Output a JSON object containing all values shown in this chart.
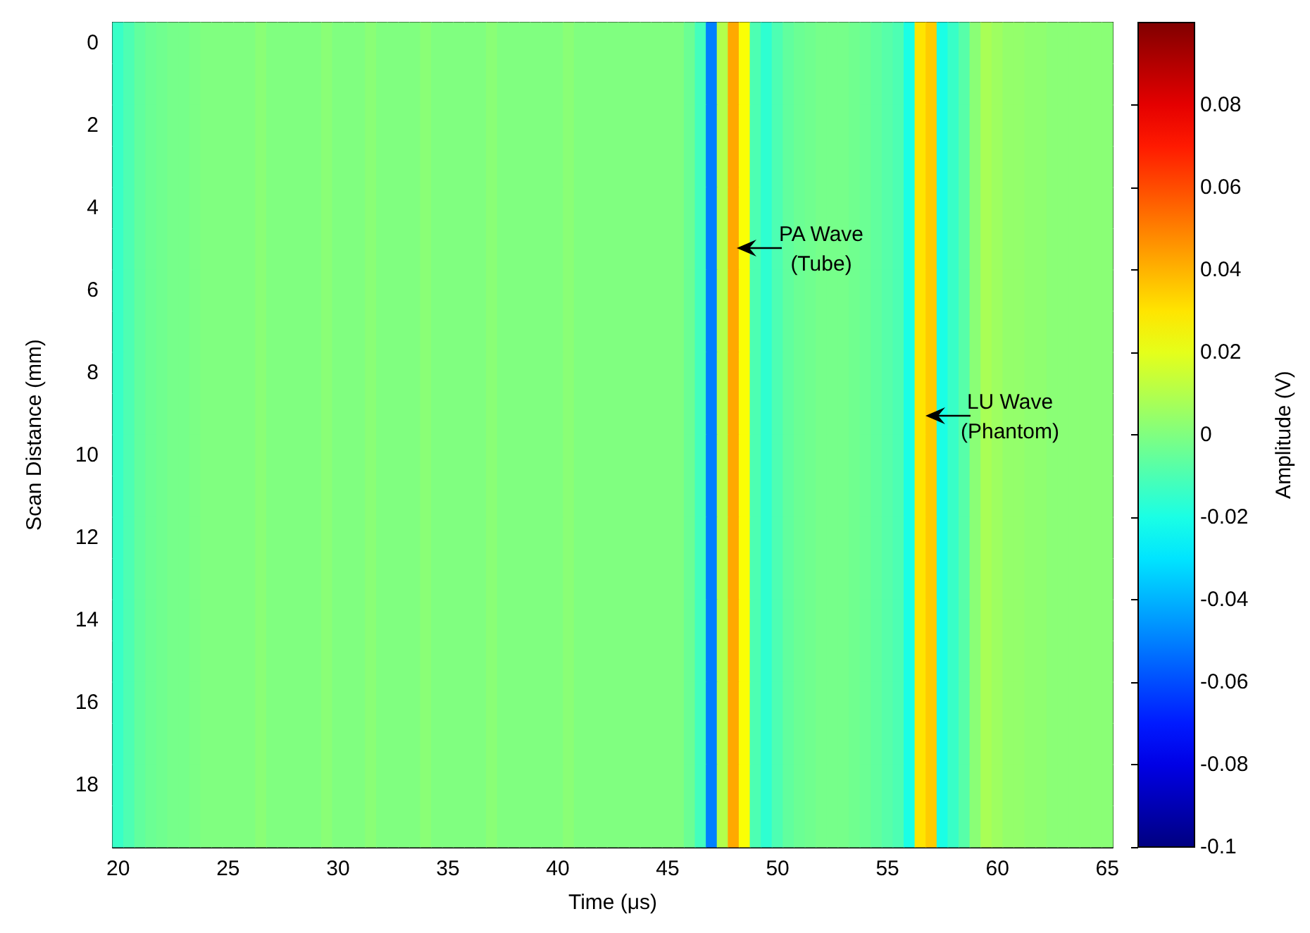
{
  "chart_data": {
    "type": "heatmap",
    "xlabel": "Time (μs)",
    "ylabel": "Scan Distance (mm)",
    "clabel": "Amplitude (V)",
    "categories": [
      "20",
      null,
      null,
      null,
      null,
      null,
      null,
      null,
      null,
      null,
      "25",
      null,
      null,
      null,
      null,
      null,
      null,
      null,
      null,
      null,
      "30",
      null,
      null,
      null,
      null,
      null,
      null,
      null,
      null,
      null,
      "35",
      null,
      null,
      null,
      null,
      null,
      null,
      null,
      null,
      null,
      "40",
      null,
      null,
      null,
      null,
      null,
      null,
      null,
      null,
      null,
      "45",
      null,
      null,
      null,
      null,
      null,
      null,
      null,
      null,
      null,
      "50",
      null,
      null,
      null,
      null,
      null,
      null,
      null,
      null,
      null,
      "55",
      null,
      null,
      null,
      null,
      null,
      null,
      null,
      null,
      null,
      "60",
      null,
      null,
      null,
      null,
      null,
      null,
      null,
      null,
      null,
      "65"
    ],
    "y_categories": [
      "0",
      null,
      "2",
      null,
      "4",
      null,
      "6",
      null,
      "8",
      null,
      "10",
      null,
      "12",
      null,
      "14",
      null,
      "16",
      null,
      "18",
      null
    ],
    "cells": [
      [
        -0.014,
        -0.01,
        -0.006,
        -0.004,
        -0.003,
        -0.002,
        -0.002,
        -0.001,
        0,
        0,
        0,
        0,
        0,
        0.002,
        0,
        0,
        0,
        0,
        0,
        0.002,
        0,
        0,
        0,
        0.002,
        0,
        0,
        0,
        0,
        0.002,
        0,
        0,
        0,
        0,
        0,
        0.002,
        0,
        0,
        0,
        0,
        0,
        0,
        0.002,
        0,
        0,
        0,
        0,
        0,
        0,
        0,
        0,
        0,
        0,
        -0.004,
        -0.012,
        -0.05,
        0.01,
        0.042,
        0.024,
        -0.01,
        -0.016,
        -0.01,
        -0.006,
        -0.004,
        -0.003,
        -0.002,
        -0.002,
        -0.002,
        -0.003,
        -0.004,
        -0.006,
        -0.008,
        -0.01,
        -0.02,
        0.03,
        0.035,
        -0.02,
        -0.014,
        -0.008,
        0.002,
        0.008,
        0.006,
        0.004,
        0.004,
        0.003,
        0.003,
        0.002,
        0.002,
        0.002,
        0.002,
        0.002,
        0.002
      ],
      [
        -0.014,
        -0.01,
        -0.006,
        -0.004,
        -0.003,
        -0.002,
        -0.002,
        -0.001,
        0,
        0,
        0,
        0,
        0,
        0.002,
        0,
        0,
        0,
        0,
        0,
        0.002,
        0,
        0,
        0,
        0.002,
        0,
        0,
        0,
        0,
        0.002,
        0,
        0,
        0,
        0,
        0,
        0.002,
        0,
        0,
        0,
        0,
        0,
        0,
        0.002,
        0,
        0,
        0,
        0,
        0,
        0,
        0,
        0,
        0,
        0,
        -0.004,
        -0.012,
        -0.05,
        0.01,
        0.042,
        0.024,
        -0.01,
        -0.016,
        -0.01,
        -0.006,
        -0.004,
        -0.003,
        -0.002,
        -0.002,
        -0.002,
        -0.003,
        -0.004,
        -0.006,
        -0.008,
        -0.01,
        -0.02,
        0.03,
        0.035,
        -0.02,
        -0.014,
        -0.008,
        0.002,
        0.008,
        0.006,
        0.004,
        0.004,
        0.003,
        0.003,
        0.002,
        0.002,
        0.002,
        0.002,
        0.002,
        0.002
      ],
      [
        -0.014,
        -0.01,
        -0.006,
        -0.004,
        -0.003,
        -0.002,
        -0.002,
        -0.001,
        0,
        0,
        0,
        0,
        0,
        0.002,
        0,
        0,
        0,
        0,
        0,
        0.002,
        0,
        0,
        0,
        0.002,
        0,
        0,
        0,
        0,
        0.002,
        0,
        0,
        0,
        0,
        0,
        0.002,
        0,
        0,
        0,
        0,
        0,
        0,
        0.002,
        0,
        0,
        0,
        0,
        0,
        0,
        0,
        0,
        0,
        0,
        -0.004,
        -0.012,
        -0.05,
        0.01,
        0.042,
        0.024,
        -0.01,
        -0.016,
        -0.01,
        -0.006,
        -0.004,
        -0.003,
        -0.002,
        -0.002,
        -0.002,
        -0.003,
        -0.004,
        -0.006,
        -0.008,
        -0.01,
        -0.02,
        0.03,
        0.035,
        -0.02,
        -0.014,
        -0.008,
        0.002,
        0.008,
        0.006,
        0.004,
        0.004,
        0.003,
        0.003,
        0.002,
        0.002,
        0.002,
        0.002,
        0.002,
        0.002
      ],
      [
        -0.014,
        -0.01,
        -0.006,
        -0.004,
        -0.003,
        -0.002,
        -0.002,
        -0.001,
        0,
        0,
        0,
        0,
        0,
        0.002,
        0,
        0,
        0,
        0,
        0,
        0.002,
        0,
        0,
        0,
        0.002,
        0,
        0,
        0,
        0,
        0.002,
        0,
        0,
        0,
        0,
        0,
        0.002,
        0,
        0,
        0,
        0,
        0,
        0,
        0.002,
        0,
        0,
        0,
        0,
        0,
        0,
        0,
        0,
        0,
        0,
        -0.004,
        -0.012,
        -0.05,
        0.01,
        0.042,
        0.024,
        -0.01,
        -0.016,
        -0.01,
        -0.006,
        -0.004,
        -0.003,
        -0.002,
        -0.002,
        -0.002,
        -0.003,
        -0.004,
        -0.006,
        -0.008,
        -0.01,
        -0.02,
        0.03,
        0.035,
        -0.02,
        -0.014,
        -0.008,
        0.002,
        0.008,
        0.006,
        0.004,
        0.004,
        0.003,
        0.003,
        0.002,
        0.002,
        0.002,
        0.002,
        0.002,
        0.002
      ],
      [
        -0.014,
        -0.01,
        -0.006,
        -0.004,
        -0.003,
        -0.002,
        -0.002,
        -0.001,
        0,
        0,
        0,
        0,
        0,
        0.002,
        0,
        0,
        0,
        0,
        0,
        0.002,
        0,
        0,
        0,
        0.002,
        0,
        0,
        0,
        0,
        0.002,
        0,
        0,
        0,
        0,
        0,
        0.002,
        0,
        0,
        0,
        0,
        0,
        0,
        0.002,
        0,
        0,
        0,
        0,
        0,
        0,
        0,
        0,
        0,
        0,
        -0.004,
        -0.012,
        -0.05,
        0.01,
        0.042,
        0.024,
        -0.01,
        -0.016,
        -0.01,
        -0.006,
        -0.004,
        -0.003,
        -0.002,
        -0.002,
        -0.002,
        -0.003,
        -0.004,
        -0.006,
        -0.008,
        -0.01,
        -0.02,
        0.03,
        0.035,
        -0.02,
        -0.014,
        -0.008,
        0.002,
        0.008,
        0.006,
        0.004,
        0.004,
        0.003,
        0.003,
        0.002,
        0.002,
        0.002,
        0.002,
        0.002,
        0.002
      ],
      [
        -0.014,
        -0.01,
        -0.006,
        -0.004,
        -0.003,
        -0.002,
        -0.002,
        -0.001,
        0,
        0,
        0,
        0,
        0,
        0.002,
        0,
        0,
        0,
        0,
        0,
        0.002,
        0,
        0,
        0,
        0.002,
        0,
        0,
        0,
        0,
        0.002,
        0,
        0,
        0,
        0,
        0,
        0.002,
        0,
        0,
        0,
        0,
        0,
        0,
        0.002,
        0,
        0,
        0,
        0,
        0,
        0,
        0,
        0,
        0,
        0,
        -0.004,
        -0.012,
        -0.05,
        0.01,
        0.042,
        0.024,
        -0.01,
        -0.016,
        -0.01,
        -0.006,
        -0.004,
        -0.003,
        -0.002,
        -0.002,
        -0.002,
        -0.003,
        -0.004,
        -0.006,
        -0.008,
        -0.01,
        -0.02,
        0.03,
        0.035,
        -0.02,
        -0.014,
        -0.008,
        0.002,
        0.008,
        0.006,
        0.004,
        0.004,
        0.003,
        0.003,
        0.002,
        0.002,
        0.002,
        0.002,
        0.002,
        0.002
      ],
      [
        -0.014,
        -0.01,
        -0.006,
        -0.004,
        -0.003,
        -0.002,
        -0.002,
        -0.001,
        0,
        0,
        0,
        0,
        0,
        0.002,
        0,
        0,
        0,
        0,
        0,
        0.002,
        0,
        0,
        0,
        0.002,
        0,
        0,
        0,
        0,
        0.002,
        0,
        0,
        0,
        0,
        0,
        0.002,
        0,
        0,
        0,
        0,
        0,
        0,
        0.002,
        0,
        0,
        0,
        0,
        0,
        0,
        0,
        0,
        0,
        0,
        -0.004,
        -0.012,
        -0.05,
        0.01,
        0.042,
        0.024,
        -0.01,
        -0.016,
        -0.01,
        -0.006,
        -0.004,
        -0.003,
        -0.002,
        -0.002,
        -0.002,
        -0.003,
        -0.004,
        -0.006,
        -0.008,
        -0.01,
        -0.02,
        0.03,
        0.035,
        -0.02,
        -0.014,
        -0.008,
        0.002,
        0.008,
        0.006,
        0.004,
        0.004,
        0.003,
        0.003,
        0.002,
        0.002,
        0.002,
        0.002,
        0.002,
        0.002
      ],
      [
        -0.014,
        -0.01,
        -0.006,
        -0.004,
        -0.003,
        -0.002,
        -0.002,
        -0.001,
        0,
        0,
        0,
        0,
        0,
        0.002,
        0,
        0,
        0,
        0,
        0,
        0.002,
        0,
        0,
        0,
        0.002,
        0,
        0,
        0,
        0,
        0.002,
        0,
        0,
        0,
        0,
        0,
        0.002,
        0,
        0,
        0,
        0,
        0,
        0,
        0.002,
        0,
        0,
        0,
        0,
        0,
        0,
        0,
        0,
        0,
        0,
        -0.004,
        -0.012,
        -0.05,
        0.01,
        0.042,
        0.024,
        -0.01,
        -0.016,
        -0.01,
        -0.006,
        -0.004,
        -0.003,
        -0.002,
        -0.002,
        -0.002,
        -0.003,
        -0.004,
        -0.006,
        -0.008,
        -0.01,
        -0.02,
        0.03,
        0.035,
        -0.02,
        -0.014,
        -0.008,
        0.002,
        0.008,
        0.006,
        0.004,
        0.004,
        0.003,
        0.003,
        0.002,
        0.002,
        0.002,
        0.002,
        0.002,
        0.002
      ],
      [
        -0.014,
        -0.01,
        -0.006,
        -0.004,
        -0.003,
        -0.002,
        -0.002,
        -0.001,
        0,
        0,
        0,
        0,
        0,
        0.002,
        0,
        0,
        0,
        0,
        0,
        0.002,
        0,
        0,
        0,
        0.002,
        0,
        0,
        0,
        0,
        0.002,
        0,
        0,
        0,
        0,
        0,
        0.002,
        0,
        0,
        0,
        0,
        0,
        0,
        0.002,
        0,
        0,
        0,
        0,
        0,
        0,
        0,
        0,
        0,
        0,
        -0.004,
        -0.012,
        -0.05,
        0.01,
        0.042,
        0.024,
        -0.01,
        -0.016,
        -0.01,
        -0.006,
        -0.004,
        -0.003,
        -0.002,
        -0.002,
        -0.002,
        -0.003,
        -0.004,
        -0.006,
        -0.008,
        -0.01,
        -0.02,
        0.03,
        0.035,
        -0.02,
        -0.014,
        -0.008,
        0.002,
        0.008,
        0.006,
        0.004,
        0.004,
        0.003,
        0.003,
        0.002,
        0.002,
        0.002,
        0.002,
        0.002,
        0.002
      ],
      [
        -0.014,
        -0.01,
        -0.006,
        -0.004,
        -0.003,
        -0.002,
        -0.002,
        -0.001,
        0,
        0,
        0,
        0,
        0,
        0.002,
        0,
        0,
        0,
        0,
        0,
        0.002,
        0,
        0,
        0,
        0.002,
        0,
        0,
        0,
        0,
        0.002,
        0,
        0,
        0,
        0,
        0,
        0.002,
        0,
        0,
        0,
        0,
        0,
        0,
        0.002,
        0,
        0,
        0,
        0,
        0,
        0,
        0,
        0,
        0,
        0,
        -0.004,
        -0.012,
        -0.05,
        0.01,
        0.042,
        0.024,
        -0.01,
        -0.016,
        -0.01,
        -0.006,
        -0.004,
        -0.003,
        -0.002,
        -0.002,
        -0.002,
        -0.003,
        -0.004,
        -0.006,
        -0.008,
        -0.01,
        -0.02,
        0.03,
        0.035,
        -0.02,
        -0.014,
        -0.008,
        0.002,
        0.008,
        0.006,
        0.004,
        0.004,
        0.003,
        0.003,
        0.002,
        0.002,
        0.002,
        0.002,
        0.002,
        0.002
      ],
      [
        -0.014,
        -0.01,
        -0.006,
        -0.004,
        -0.003,
        -0.002,
        -0.002,
        -0.001,
        0,
        0,
        0,
        0,
        0,
        0.002,
        0,
        0,
        0,
        0,
        0,
        0.002,
        0,
        0,
        0,
        0.002,
        0,
        0,
        0,
        0,
        0.002,
        0,
        0,
        0,
        0,
        0,
        0.002,
        0,
        0,
        0,
        0,
        0,
        0,
        0.002,
        0,
        0,
        0,
        0,
        0,
        0,
        0,
        0,
        0,
        0,
        -0.004,
        -0.012,
        -0.05,
        0.01,
        0.042,
        0.024,
        -0.01,
        -0.016,
        -0.01,
        -0.006,
        -0.004,
        -0.003,
        -0.002,
        -0.002,
        -0.002,
        -0.003,
        -0.004,
        -0.006,
        -0.008,
        -0.01,
        -0.02,
        0.03,
        0.035,
        -0.02,
        -0.014,
        -0.008,
        0.002,
        0.008,
        0.006,
        0.004,
        0.004,
        0.003,
        0.003,
        0.002,
        0.002,
        0.002,
        0.002,
        0.002,
        0.002
      ],
      [
        -0.014,
        -0.01,
        -0.006,
        -0.004,
        -0.003,
        -0.002,
        -0.002,
        -0.001,
        0,
        0,
        0,
        0,
        0,
        0.002,
        0,
        0,
        0,
        0,
        0,
        0.002,
        0,
        0,
        0,
        0.002,
        0,
        0,
        0,
        0,
        0.002,
        0,
        0,
        0,
        0,
        0,
        0.002,
        0,
        0,
        0,
        0,
        0,
        0,
        0.002,
        0,
        0,
        0,
        0,
        0,
        0,
        0,
        0,
        0,
        0,
        -0.004,
        -0.012,
        -0.05,
        0.01,
        0.042,
        0.024,
        -0.01,
        -0.016,
        -0.01,
        -0.006,
        -0.004,
        -0.003,
        -0.002,
        -0.002,
        -0.002,
        -0.003,
        -0.004,
        -0.006,
        -0.008,
        -0.01,
        -0.02,
        0.03,
        0.035,
        -0.02,
        -0.014,
        -0.008,
        0.002,
        0.008,
        0.006,
        0.004,
        0.004,
        0.003,
        0.003,
        0.002,
        0.002,
        0.002,
        0.002,
        0.002,
        0.002
      ],
      [
        -0.014,
        -0.01,
        -0.006,
        -0.004,
        -0.003,
        -0.002,
        -0.002,
        -0.001,
        0,
        0,
        0,
        0,
        0,
        0.002,
        0,
        0,
        0,
        0,
        0,
        0.002,
        0,
        0,
        0,
        0.002,
        0,
        0,
        0,
        0,
        0.002,
        0,
        0,
        0,
        0,
        0,
        0.002,
        0,
        0,
        0,
        0,
        0,
        0,
        0.002,
        0,
        0,
        0,
        0,
        0,
        0,
        0,
        0,
        0,
        0,
        -0.004,
        -0.012,
        -0.05,
        0.01,
        0.042,
        0.024,
        -0.01,
        -0.016,
        -0.01,
        -0.006,
        -0.004,
        -0.003,
        -0.002,
        -0.002,
        -0.002,
        -0.003,
        -0.004,
        -0.006,
        -0.008,
        -0.01,
        -0.02,
        0.03,
        0.035,
        -0.02,
        -0.014,
        -0.008,
        0.002,
        0.008,
        0.006,
        0.004,
        0.004,
        0.003,
        0.003,
        0.002,
        0.002,
        0.002,
        0.002,
        0.002,
        0.002
      ],
      [
        -0.014,
        -0.01,
        -0.006,
        -0.004,
        -0.003,
        -0.002,
        -0.002,
        -0.001,
        0,
        0,
        0,
        0,
        0,
        0.002,
        0,
        0,
        0,
        0,
        0,
        0.002,
        0,
        0,
        0,
        0.002,
        0,
        0,
        0,
        0,
        0.002,
        0,
        0,
        0,
        0,
        0,
        0.002,
        0,
        0,
        0,
        0,
        0,
        0,
        0.002,
        0,
        0,
        0,
        0,
        0,
        0,
        0,
        0,
        0,
        0,
        -0.004,
        -0.012,
        -0.05,
        0.01,
        0.042,
        0.024,
        -0.01,
        -0.016,
        -0.01,
        -0.006,
        -0.004,
        -0.003,
        -0.002,
        -0.002,
        -0.002,
        -0.003,
        -0.004,
        -0.006,
        -0.008,
        -0.01,
        -0.02,
        0.03,
        0.035,
        -0.02,
        -0.014,
        -0.008,
        0.002,
        0.008,
        0.006,
        0.004,
        0.004,
        0.003,
        0.003,
        0.002,
        0.002,
        0.002,
        0.002,
        0.002,
        0.002
      ],
      [
        -0.014,
        -0.01,
        -0.006,
        -0.004,
        -0.003,
        -0.002,
        -0.002,
        -0.001,
        0,
        0,
        0,
        0,
        0,
        0.002,
        0,
        0,
        0,
        0,
        0,
        0.002,
        0,
        0,
        0,
        0.002,
        0,
        0,
        0,
        0,
        0.002,
        0,
        0,
        0,
        0,
        0,
        0.002,
        0,
        0,
        0,
        0,
        0,
        0,
        0.002,
        0,
        0,
        0,
        0,
        0,
        0,
        0,
        0,
        0,
        0,
        -0.004,
        -0.012,
        -0.05,
        0.01,
        0.042,
        0.024,
        -0.01,
        -0.016,
        -0.01,
        -0.006,
        -0.004,
        -0.003,
        -0.002,
        -0.002,
        -0.002,
        -0.003,
        -0.004,
        -0.006,
        -0.008,
        -0.01,
        -0.02,
        0.03,
        0.035,
        -0.02,
        -0.014,
        -0.008,
        0.002,
        0.008,
        0.006,
        0.004,
        0.004,
        0.003,
        0.003,
        0.002,
        0.002,
        0.002,
        0.002,
        0.002,
        0.002
      ],
      [
        -0.014,
        -0.01,
        -0.006,
        -0.004,
        -0.003,
        -0.002,
        -0.002,
        -0.001,
        0,
        0,
        0,
        0,
        0,
        0.002,
        0,
        0,
        0,
        0,
        0,
        0.002,
        0,
        0,
        0,
        0.002,
        0,
        0,
        0,
        0,
        0.002,
        0,
        0,
        0,
        0,
        0,
        0.002,
        0,
        0,
        0,
        0,
        0,
        0,
        0.002,
        0,
        0,
        0,
        0,
        0,
        0,
        0,
        0,
        0,
        0,
        -0.004,
        -0.012,
        -0.05,
        0.01,
        0.042,
        0.024,
        -0.01,
        -0.016,
        -0.01,
        -0.006,
        -0.004,
        -0.003,
        -0.002,
        -0.002,
        -0.002,
        -0.003,
        -0.004,
        -0.006,
        -0.008,
        -0.01,
        -0.02,
        0.03,
        0.035,
        -0.02,
        -0.014,
        -0.008,
        0.002,
        0.008,
        0.006,
        0.004,
        0.004,
        0.003,
        0.003,
        0.002,
        0.002,
        0.002,
        0.002,
        0.002,
        0.002
      ],
      [
        -0.014,
        -0.01,
        -0.006,
        -0.004,
        -0.003,
        -0.002,
        -0.002,
        -0.001,
        0,
        0,
        0,
        0,
        0,
        0.002,
        0,
        0,
        0,
        0,
        0,
        0.002,
        0,
        0,
        0,
        0.002,
        0,
        0,
        0,
        0,
        0.002,
        0,
        0,
        0,
        0,
        0,
        0.002,
        0,
        0,
        0,
        0,
        0,
        0,
        0.002,
        0,
        0,
        0,
        0,
        0,
        0,
        0,
        0,
        0,
        0,
        -0.004,
        -0.012,
        -0.05,
        0.01,
        0.042,
        0.024,
        -0.01,
        -0.016,
        -0.01,
        -0.006,
        -0.004,
        -0.003,
        -0.002,
        -0.002,
        -0.002,
        -0.003,
        -0.004,
        -0.006,
        -0.008,
        -0.01,
        -0.02,
        0.03,
        0.035,
        -0.02,
        -0.014,
        -0.008,
        0.002,
        0.008,
        0.006,
        0.004,
        0.004,
        0.003,
        0.003,
        0.002,
        0.002,
        0.002,
        0.002,
        0.002,
        0.002
      ],
      [
        -0.014,
        -0.01,
        -0.006,
        -0.004,
        -0.003,
        -0.002,
        -0.002,
        -0.001,
        0,
        0,
        0,
        0,
        0,
        0.002,
        0,
        0,
        0,
        0,
        0,
        0.002,
        0,
        0,
        0,
        0.002,
        0,
        0,
        0,
        0,
        0.002,
        0,
        0,
        0,
        0,
        0,
        0.002,
        0,
        0,
        0,
        0,
        0,
        0,
        0.002,
        0,
        0,
        0,
        0,
        0,
        0,
        0,
        0,
        0,
        0,
        -0.004,
        -0.012,
        -0.05,
        0.01,
        0.042,
        0.024,
        -0.01,
        -0.016,
        -0.01,
        -0.006,
        -0.004,
        -0.003,
        -0.002,
        -0.002,
        -0.002,
        -0.003,
        -0.004,
        -0.006,
        -0.008,
        -0.01,
        -0.02,
        0.03,
        0.035,
        -0.02,
        -0.014,
        -0.008,
        0.002,
        0.008,
        0.006,
        0.004,
        0.004,
        0.003,
        0.003,
        0.002,
        0.002,
        0.002,
        0.002,
        0.002,
        0.002
      ],
      [
        -0.014,
        -0.01,
        -0.006,
        -0.004,
        -0.003,
        -0.002,
        -0.002,
        -0.001,
        0,
        0,
        0,
        0,
        0,
        0.002,
        0,
        0,
        0,
        0,
        0,
        0.002,
        0,
        0,
        0,
        0.002,
        0,
        0,
        0,
        0,
        0.002,
        0,
        0,
        0,
        0,
        0,
        0.002,
        0,
        0,
        0,
        0,
        0,
        0,
        0.002,
        0,
        0,
        0,
        0,
        0,
        0,
        0,
        0,
        0,
        0,
        -0.004,
        -0.012,
        -0.05,
        0.01,
        0.042,
        0.024,
        -0.01,
        -0.016,
        -0.01,
        -0.006,
        -0.004,
        -0.003,
        -0.002,
        -0.002,
        -0.002,
        -0.003,
        -0.004,
        -0.006,
        -0.008,
        -0.01,
        -0.02,
        0.03,
        0.035,
        -0.02,
        -0.014,
        -0.008,
        0.002,
        0.008,
        0.006,
        0.004,
        0.004,
        0.003,
        0.003,
        0.002,
        0.002,
        0.002,
        0.002,
        0.002,
        0.002
      ],
      [
        -0.014,
        -0.01,
        -0.006,
        -0.004,
        -0.003,
        -0.002,
        -0.002,
        -0.001,
        0,
        0,
        0,
        0,
        0,
        0.002,
        0,
        0,
        0,
        0,
        0,
        0.002,
        0,
        0,
        0,
        0.002,
        0,
        0,
        0,
        0,
        0.002,
        0,
        0,
        0,
        0,
        0,
        0.002,
        0,
        0,
        0,
        0,
        0,
        0,
        0.002,
        0,
        0,
        0,
        0,
        0,
        0,
        0,
        0,
        0,
        0,
        -0.004,
        -0.012,
        -0.05,
        0.01,
        0.042,
        0.024,
        -0.01,
        -0.016,
        -0.01,
        -0.006,
        -0.004,
        -0.003,
        -0.002,
        -0.002,
        -0.002,
        -0.003,
        -0.004,
        -0.006,
        -0.008,
        -0.01,
        -0.02,
        0.03,
        0.035,
        -0.02,
        -0.014,
        -0.008,
        0.002,
        0.008,
        0.006,
        0.004,
        0.004,
        0.003,
        0.003,
        0.002,
        0.002,
        0.002,
        0.002,
        0.002,
        0.002
      ]
    ],
    "clim": [
      -0.1,
      0.1
    ],
    "cticks": [
      -0.1,
      -0.08,
      -0.06,
      -0.04,
      -0.02,
      0,
      0.02,
      0.04,
      0.06,
      0.08
    ],
    "annotations": [
      "PA Wave\n(Tube)",
      "LU Wave\n(Phantom)"
    ]
  }
}
